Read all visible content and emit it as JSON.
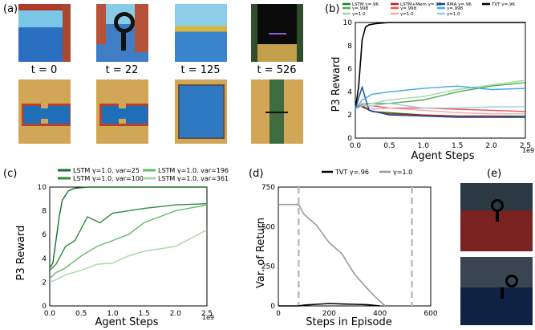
{
  "panel_labels": {
    "a": "(a)",
    "b": "(b)",
    "c": "(c)",
    "d": "(d)",
    "e": "(e)"
  },
  "timesteps": [
    "t = 0",
    "t = 22",
    "t = 125",
    "t = 526"
  ],
  "colors": {
    "tvt": "#000000",
    "lstm": "#2ca02c",
    "lstm_mem": "#d62728",
    "rma": "#1f77b4",
    "var_of_return_gamma1": "#999999"
  },
  "chart_data": [
    {
      "id": "b",
      "type": "line",
      "xlabel": "Agent Steps",
      "ylabel": "P3 Reward",
      "xlim": [
        0,
        2.5
      ],
      "ylim": [
        0,
        10
      ],
      "x_ticks": [
        "0.0",
        "0.5",
        "1.0",
        "1.5",
        "2.0",
        "2.5"
      ],
      "y_ticks": [
        "0",
        "2",
        "4",
        "6",
        "8",
        "10"
      ],
      "x_scale_note": "1e9",
      "legend": {
        "groups": [
          {
            "title": "LSTM γ=.96",
            "items": [
              "γ=.998",
              "γ=1.0"
            ]
          },
          {
            "title": "LSTM+Mem γ=.96",
            "items": [
              "γ=.998",
              "γ=1.0"
            ]
          },
          {
            "title": "RMA γ=.96",
            "items": [
              "γ=.998",
              "γ=1.0"
            ]
          },
          {
            "title": "TVT γ=.96",
            "items": []
          }
        ]
      },
      "series": [
        {
          "name": "TVT γ=.96",
          "color": "#000000",
          "x": [
            0,
            0.05,
            0.1,
            0.15,
            0.2,
            0.3,
            0.5,
            1.0,
            1.5,
            2.0,
            2.5
          ],
          "values": [
            2.5,
            4.5,
            8.5,
            9.6,
            9.8,
            9.9,
            10,
            10,
            10,
            10,
            10
          ]
        },
        {
          "name": "LSTM γ=.96",
          "color": "#1e7a1e",
          "x": [
            0,
            0.1,
            0.25,
            0.5,
            1.0,
            1.5,
            2.0,
            2.5
          ],
          "values": [
            2.7,
            2.8,
            2.3,
            2.2,
            2.0,
            1.9,
            1.9,
            1.9
          ]
        },
        {
          "name": "LSTM γ=.998",
          "color": "#4caf50",
          "x": [
            0,
            0.1,
            0.25,
            0.5,
            1.0,
            1.5,
            2.0,
            2.5
          ],
          "values": [
            2.6,
            2.9,
            3.0,
            3.0,
            3.3,
            4.0,
            4.5,
            4.8
          ]
        },
        {
          "name": "LSTM γ=1.0",
          "color": "#a5d6a7",
          "x": [
            0,
            0.1,
            0.25,
            0.5,
            1.0,
            1.5,
            2.0,
            2.5
          ],
          "values": [
            2.6,
            3.0,
            3.0,
            3.3,
            3.6,
            4.2,
            4.6,
            5.0
          ]
        },
        {
          "name": "LSTM+Mem γ=.96",
          "color": "#b71c1c",
          "x": [
            0,
            0.1,
            0.25,
            0.5,
            1.0,
            1.5,
            2.0,
            2.5
          ],
          "values": [
            2.8,
            2.7,
            2.3,
            2.1,
            2.0,
            1.9,
            1.9,
            1.8
          ]
        },
        {
          "name": "LSTM+Mem γ=.998",
          "color": "#ef5350",
          "x": [
            0,
            0.1,
            0.25,
            0.5,
            1.0,
            1.5,
            2.0,
            2.5
          ],
          "values": [
            2.7,
            2.8,
            2.8,
            2.6,
            2.6,
            2.5,
            2.4,
            2.3
          ]
        },
        {
          "name": "LSTM+Mem γ=1.0",
          "color": "#f4a9a8",
          "x": [
            0,
            0.1,
            0.25,
            0.5,
            1.0,
            1.5,
            2.0,
            2.5
          ],
          "values": [
            2.7,
            3.0,
            2.5,
            2.6,
            2.4,
            2.2,
            2.1,
            2.1
          ]
        },
        {
          "name": "RMA γ=.96",
          "color": "#0d47a1",
          "x": [
            0,
            0.05,
            0.1,
            0.2,
            0.5,
            1.0,
            1.5,
            2.0,
            2.5
          ],
          "values": [
            2.5,
            3.5,
            4.4,
            2.4,
            2.0,
            1.9,
            1.8,
            1.8,
            1.8
          ]
        },
        {
          "name": "RMA γ=.998",
          "color": "#42a5f5",
          "x": [
            0,
            0.1,
            0.25,
            0.5,
            1.0,
            1.5,
            2.0,
            2.5
          ],
          "values": [
            2.5,
            3.3,
            3.8,
            4.0,
            4.3,
            4.5,
            4.2,
            4.3
          ]
        },
        {
          "name": "RMA γ=1.0",
          "color": "#9ecae1",
          "x": [
            0,
            0.1,
            0.25,
            0.5,
            1.0,
            1.5,
            2.0,
            2.5
          ],
          "values": [
            2.5,
            2.8,
            2.8,
            3.0,
            2.6,
            2.6,
            2.7,
            2.7
          ]
        }
      ]
    },
    {
      "id": "c",
      "type": "line",
      "xlabel": "Agent Steps",
      "ylabel": "P3 Reward",
      "xlim": [
        0,
        2.5
      ],
      "ylim": [
        0,
        10
      ],
      "x_ticks": [
        "0.0",
        "0.5",
        "1.0",
        "1.5",
        "2.0",
        "2.5"
      ],
      "y_ticks": [
        "0",
        "2",
        "4",
        "6",
        "8",
        "10"
      ],
      "x_scale_note": "1e9",
      "series": [
        {
          "name": "LSTM γ=1.0, var=25",
          "color": "#1b6e2a",
          "x": [
            0,
            0.05,
            0.1,
            0.15,
            0.2,
            0.3,
            0.4,
            0.6,
            1.0,
            1.5,
            2.0,
            2.5
          ],
          "values": [
            3.2,
            3.6,
            5.5,
            7.5,
            8.9,
            9.7,
            9.9,
            10,
            10,
            10,
            10,
            10
          ]
        },
        {
          "name": "LSTM γ=1.0, var=100",
          "color": "#2e8b3e",
          "x": [
            0,
            0.1,
            0.25,
            0.4,
            0.6,
            0.8,
            1.0,
            1.25,
            1.5,
            2.0,
            2.5
          ],
          "values": [
            3.0,
            3.5,
            5.0,
            5.5,
            7.5,
            7.0,
            7.8,
            8.0,
            8.2,
            8.5,
            8.6
          ]
        },
        {
          "name": "LSTM γ=1.0, var=196",
          "color": "#66bb6a",
          "x": [
            0,
            0.1,
            0.25,
            0.5,
            0.75,
            1.0,
            1.25,
            1.5,
            2.0,
            2.5
          ],
          "values": [
            2.3,
            2.8,
            3.2,
            4.2,
            5.0,
            5.5,
            6.0,
            7.0,
            8.0,
            8.5
          ]
        },
        {
          "name": "LSTM γ=1.0, var=361",
          "color": "#a5d6a7",
          "x": [
            0,
            0.1,
            0.25,
            0.5,
            0.75,
            1.0,
            1.25,
            1.5,
            2.0,
            2.5
          ],
          "values": [
            2.0,
            2.2,
            2.6,
            3.0,
            3.5,
            3.6,
            4.2,
            4.6,
            5.0,
            6.4
          ]
        }
      ]
    },
    {
      "id": "d",
      "type": "line",
      "xlabel": "Steps in Episode",
      "ylabel": "Var. of Return",
      "xlim": [
        0,
        600
      ],
      "ylim": [
        0,
        750
      ],
      "x_ticks": [
        "0",
        "200",
        "400",
        "600"
      ],
      "y_ticks": [
        "0",
        "250",
        "500",
        "750"
      ],
      "vlines": [
        80,
        526
      ],
      "series": [
        {
          "name": "TVT γ=.96",
          "color": "#000000",
          "x": [
            0,
            80,
            100,
            150,
            200,
            250,
            300,
            350,
            400
          ],
          "values": [
            0,
            0,
            5,
            10,
            15,
            12,
            10,
            8,
            0
          ]
        },
        {
          "name": "γ=1.0",
          "color": "#999999",
          "x": [
            0,
            80,
            100,
            150,
            200,
            250,
            300,
            350,
            380,
            400,
            420
          ],
          "values": [
            640,
            640,
            580,
            510,
            400,
            330,
            200,
            110,
            60,
            30,
            0
          ]
        }
      ]
    }
  ]
}
